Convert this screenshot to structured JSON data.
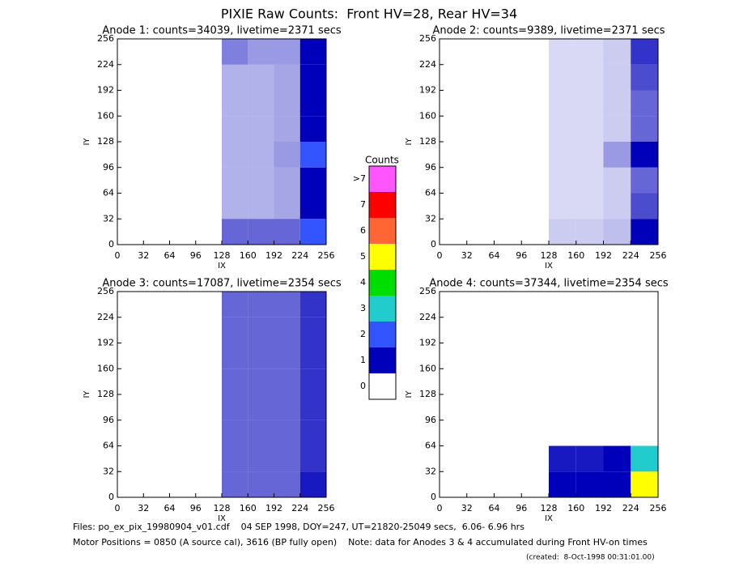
{
  "title": "PIXIE Raw Counts:  Front HV=28, Rear HV=34",
  "colorbar": {
    "title": "Counts",
    "ticks": [
      0,
      1,
      2,
      3,
      4,
      5,
      6,
      7,
      {
        "value": 8,
        "label": ">7"
      }
    ],
    "colors": [
      "#ffffff",
      "#0000bb",
      "#3355ff",
      "#22cccc",
      "#00dd00",
      "#ffff00",
      "#ff6633",
      "#ff0000",
      "#ff55ff"
    ]
  },
  "chart_data": [
    {
      "type": "heatmap",
      "title": "Anode 1: counts=34039, livetime=2371 secs",
      "x_label": "IX",
      "y_label": "IY",
      "xlim": [
        0,
        256
      ],
      "ylim": [
        0,
        256
      ],
      "xticks": [
        0,
        32,
        64,
        96,
        128,
        160,
        192,
        224,
        256
      ],
      "yticks": [
        0,
        32,
        64,
        96,
        128,
        160,
        192,
        224,
        256
      ],
      "xbins": [
        0,
        32,
        64,
        96,
        128,
        160,
        192,
        224,
        256
      ],
      "ybins": [
        0,
        32,
        64,
        96,
        128,
        160,
        192,
        224,
        256
      ],
      "values": [
        [
          0,
          0,
          0,
          0,
          0.6,
          0.6,
          0.6,
          2.2
        ],
        [
          0,
          0,
          0,
          0,
          0.3,
          0.3,
          0.35,
          1.6
        ],
        [
          0,
          0,
          0,
          0,
          0.3,
          0.3,
          0.35,
          1.8
        ],
        [
          0,
          0,
          0,
          0,
          0.3,
          0.3,
          0.4,
          2.5
        ],
        [
          0,
          0,
          0,
          0,
          0.3,
          0.3,
          0.35,
          1.8
        ],
        [
          0,
          0,
          0,
          0,
          0.3,
          0.3,
          0.35,
          1.5
        ],
        [
          0,
          0,
          0,
          0,
          0.3,
          0.3,
          0.35,
          1.3
        ],
        [
          0,
          0,
          0,
          0,
          0.5,
          0.4,
          0.4,
          1.4
        ]
      ]
    },
    {
      "type": "heatmap",
      "title": "Anode 2: counts=9389, livetime=2371 secs",
      "x_label": "IX",
      "y_label": "IY",
      "xlim": [
        0,
        256
      ],
      "ylim": [
        0,
        256
      ],
      "xticks": [
        0,
        32,
        64,
        96,
        128,
        160,
        192,
        224,
        256
      ],
      "yticks": [
        0,
        32,
        64,
        96,
        128,
        160,
        192,
        224,
        256
      ],
      "xbins": [
        0,
        32,
        64,
        96,
        128,
        160,
        192,
        224,
        256
      ],
      "ybins": [
        0,
        32,
        64,
        96,
        128,
        160,
        192,
        224,
        256
      ],
      "values": [
        [
          0,
          0,
          0,
          0,
          0.2,
          0.2,
          0.25,
          1.0
        ],
        [
          0,
          0,
          0,
          0,
          0.15,
          0.15,
          0.2,
          0.7
        ],
        [
          0,
          0,
          0,
          0,
          0.15,
          0.15,
          0.2,
          0.6
        ],
        [
          0,
          0,
          0,
          0,
          0.15,
          0.15,
          0.4,
          1.2
        ],
        [
          0,
          0,
          0,
          0,
          0.15,
          0.15,
          0.2,
          0.6
        ],
        [
          0,
          0,
          0,
          0,
          0.15,
          0.15,
          0.2,
          0.6
        ],
        [
          0,
          0,
          0,
          0,
          0.15,
          0.15,
          0.2,
          0.7
        ],
        [
          0,
          0,
          0,
          0,
          0.15,
          0.15,
          0.2,
          0.8
        ]
      ]
    },
    {
      "type": "heatmap",
      "title": "Anode 3: counts=17087, livetime=2354 secs",
      "x_label": "IX",
      "y_label": "IY",
      "xlim": [
        0,
        256
      ],
      "ylim": [
        0,
        256
      ],
      "xticks": [
        0,
        32,
        64,
        96,
        128,
        160,
        192,
        224,
        256
      ],
      "yticks": [
        0,
        32,
        64,
        96,
        128,
        160,
        192,
        224,
        256
      ],
      "xbins": [
        0,
        32,
        64,
        96,
        128,
        160,
        192,
        224,
        256
      ],
      "ybins": [
        0,
        32,
        64,
        96,
        128,
        160,
        192,
        224,
        256
      ],
      "values": [
        [
          0,
          0,
          0,
          0,
          0.6,
          0.6,
          0.6,
          0.9
        ],
        [
          0,
          0,
          0,
          0,
          0.6,
          0.6,
          0.6,
          0.8
        ],
        [
          0,
          0,
          0,
          0,
          0.6,
          0.6,
          0.6,
          0.8
        ],
        [
          0,
          0,
          0,
          0,
          0.6,
          0.6,
          0.6,
          0.8
        ],
        [
          0,
          0,
          0,
          0,
          0.6,
          0.6,
          0.6,
          0.8
        ],
        [
          0,
          0,
          0,
          0,
          0.6,
          0.6,
          0.6,
          0.8
        ],
        [
          0,
          0,
          0,
          0,
          0.6,
          0.6,
          0.6,
          0.8
        ],
        [
          0,
          0,
          0,
          0,
          0.6,
          0.6,
          0.6,
          0.8
        ]
      ]
    },
    {
      "type": "heatmap",
      "title": "Anode 4: counts=37344, livetime=2354 secs",
      "x_label": "IX",
      "y_label": "IY",
      "xlim": [
        0,
        256
      ],
      "ylim": [
        0,
        256
      ],
      "xticks": [
        0,
        32,
        64,
        96,
        128,
        160,
        192,
        224,
        256
      ],
      "yticks": [
        0,
        32,
        64,
        96,
        128,
        160,
        192,
        224,
        256
      ],
      "xbins": [
        0,
        32,
        64,
        96,
        128,
        160,
        192,
        224,
        256
      ],
      "ybins": [
        0,
        32,
        64,
        96,
        128,
        160,
        192,
        224,
        256
      ],
      "values": [
        [
          0,
          0,
          0,
          0,
          1.2,
          1.2,
          1.6,
          5
        ],
        [
          0,
          0,
          0,
          0,
          0.9,
          0.9,
          1.2,
          3.5
        ],
        [
          0,
          0,
          0,
          0,
          0,
          0,
          0,
          0
        ],
        [
          0,
          0,
          0,
          0,
          0,
          0,
          0,
          0
        ],
        [
          0,
          0,
          0,
          0,
          0,
          0,
          0,
          0
        ],
        [
          0,
          0,
          0,
          0,
          0,
          0,
          0,
          0
        ],
        [
          0,
          0,
          0,
          0,
          0,
          0,
          0,
          0
        ],
        [
          0,
          0,
          0,
          0,
          0,
          0,
          0,
          0
        ]
      ]
    }
  ],
  "footer": [
    "Files: po_ex_pix_19980904_v01.cdf    04 SEP 1998, DOY=247, UT=21820-25049 secs,  6.06- 6.96 hrs",
    "Motor Positions = 0850 (A source cal), 3616 (BP fully open)    Note: data for Anodes 3 & 4 accumulated during Front HV-on times",
    "(created:  8-Oct-1998 00:31:01.00)"
  ]
}
